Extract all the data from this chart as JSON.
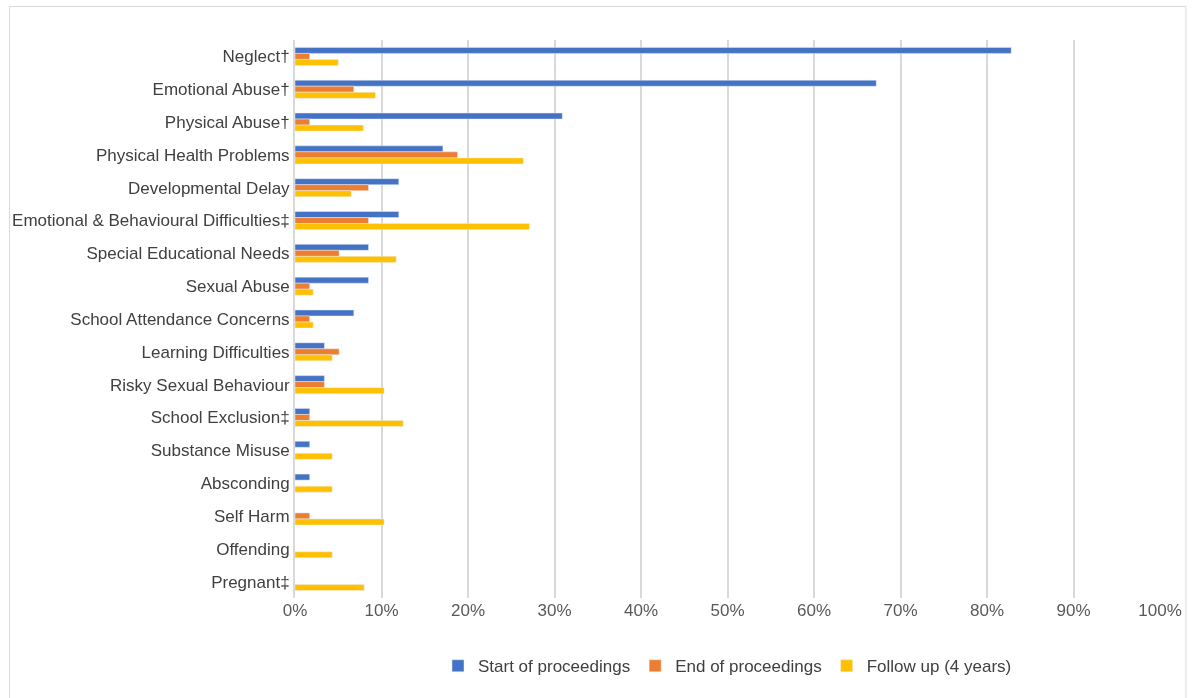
{
  "chart_data": {
    "type": "bar",
    "orientation": "horizontal",
    "categories": [
      "Neglect†",
      "Emotional Abuse†",
      "Physical Abuse†",
      "Physical Health Problems",
      "Developmental Delay",
      "Emotional & Behavioural Difficulties‡",
      "Special Educational Needs",
      "Sexual Abuse",
      "School Attendance Concerns",
      "Learning Difficulties",
      "Risky Sexual Behaviour",
      "School Exclusion‡",
      "Substance Misuse",
      "Absconding",
      "Self Harm",
      "Offending",
      "Pregnant‡"
    ],
    "series": [
      {
        "name": "Start of proceedings",
        "color": "#4472c4",
        "values": [
          82.8,
          67.2,
          30.9,
          17.1,
          12.0,
          12.0,
          8.5,
          8.5,
          6.8,
          3.4,
          3.4,
          1.7,
          1.7,
          1.7,
          null,
          null,
          null
        ]
      },
      {
        "name": "End of proceedings",
        "color": "#ed7d31",
        "values": [
          1.7,
          6.8,
          1.7,
          18.8,
          8.5,
          8.5,
          5.1,
          1.7,
          1.7,
          5.1,
          3.4,
          1.7,
          null,
          null,
          1.7,
          null,
          null
        ]
      },
      {
        "name": "Follow up (4 years)",
        "color": "#ffc000",
        "values": [
          5.0,
          9.3,
          7.9,
          26.4,
          6.5,
          27.1,
          11.7,
          2.1,
          2.1,
          4.3,
          10.3,
          12.5,
          4.3,
          4.3,
          10.3,
          4.3,
          8.0
        ]
      }
    ],
    "xlim": [
      0,
      100
    ],
    "xticks": [
      {
        "value": 0,
        "label": "0%"
      },
      {
        "value": 10,
        "label": "10%"
      },
      {
        "value": 20,
        "label": "20%"
      },
      {
        "value": 30,
        "label": "30%"
      },
      {
        "value": 40,
        "label": "40%"
      },
      {
        "value": 50,
        "label": "50%"
      },
      {
        "value": 60,
        "label": "60%"
      },
      {
        "value": 70,
        "label": "70%"
      },
      {
        "value": 80,
        "label": "80%"
      },
      {
        "value": 90,
        "label": "90%"
      },
      {
        "value": 100,
        "label": "100%"
      }
    ],
    "grid": "x",
    "legend": "bottom"
  }
}
